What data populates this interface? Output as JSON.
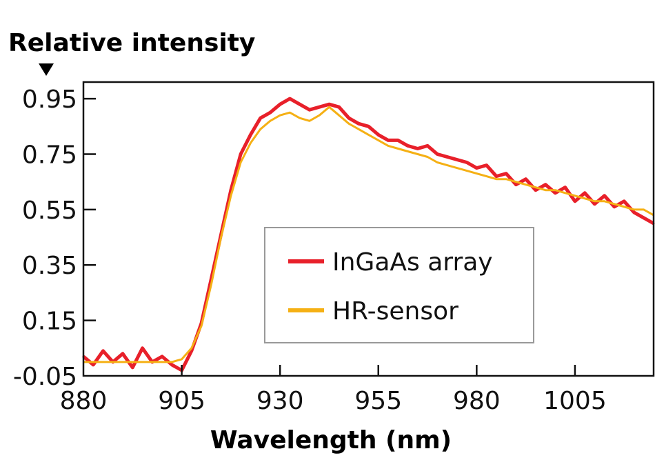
{
  "chart_data": {
    "type": "line",
    "title": "",
    "ylabel": "Relative intensity",
    "xlabel": "Wavelength (nm)",
    "xlim": [
      880,
      1025
    ],
    "ylim": [
      -0.05,
      1.01
    ],
    "xticks": [
      "880",
      "905",
      "930",
      "955",
      "980",
      "1005"
    ],
    "yticks": [
      "0.95",
      "0.75",
      "0.55",
      "0.35",
      "0.15",
      "-0.05"
    ],
    "grid": false,
    "legend_position": "center-right",
    "x": [
      880,
      882.5,
      885,
      887.5,
      890,
      892.5,
      895,
      897.5,
      900,
      902.5,
      905,
      907.5,
      910,
      912.5,
      915,
      917.5,
      920,
      922.5,
      925,
      927.5,
      930,
      932.5,
      935,
      937.5,
      940,
      942.5,
      945,
      947.5,
      950,
      952.5,
      955,
      957.5,
      960,
      962.5,
      965,
      967.5,
      970,
      972.5,
      975,
      977.5,
      980,
      982.5,
      985,
      987.5,
      990,
      992.5,
      995,
      997.5,
      1000,
      1002.5,
      1005,
      1007.5,
      1010,
      1012.5,
      1015,
      1017.5,
      1020,
      1022.5,
      1025
    ],
    "series": [
      {
        "name": "InGaAs array",
        "color": "#e8202a",
        "values": [
          0.02,
          -0.01,
          0.04,
          0.0,
          0.03,
          -0.02,
          0.05,
          0.0,
          0.02,
          -0.01,
          -0.03,
          0.04,
          0.14,
          0.3,
          0.46,
          0.62,
          0.75,
          0.82,
          0.88,
          0.9,
          0.93,
          0.95,
          0.93,
          0.91,
          0.92,
          0.93,
          0.92,
          0.88,
          0.86,
          0.85,
          0.82,
          0.8,
          0.8,
          0.78,
          0.77,
          0.78,
          0.75,
          0.74,
          0.73,
          0.72,
          0.7,
          0.71,
          0.67,
          0.68,
          0.64,
          0.66,
          0.62,
          0.64,
          0.61,
          0.63,
          0.58,
          0.61,
          0.57,
          0.6,
          0.56,
          0.58,
          0.54,
          0.52,
          0.5
        ]
      },
      {
        "name": "HR-sensor",
        "color": "#f5b014",
        "values": [
          0.0,
          0.0,
          0.0,
          0.0,
          0.0,
          0.0,
          0.0,
          0.0,
          0.0,
          0.0,
          0.01,
          0.05,
          0.13,
          0.28,
          0.45,
          0.6,
          0.72,
          0.79,
          0.84,
          0.87,
          0.89,
          0.9,
          0.88,
          0.87,
          0.89,
          0.92,
          0.89,
          0.86,
          0.84,
          0.82,
          0.8,
          0.78,
          0.77,
          0.76,
          0.75,
          0.74,
          0.72,
          0.71,
          0.7,
          0.69,
          0.68,
          0.67,
          0.66,
          0.66,
          0.65,
          0.64,
          0.63,
          0.62,
          0.62,
          0.61,
          0.6,
          0.59,
          0.58,
          0.58,
          0.57,
          0.56,
          0.55,
          0.55,
          0.53
        ]
      }
    ]
  }
}
